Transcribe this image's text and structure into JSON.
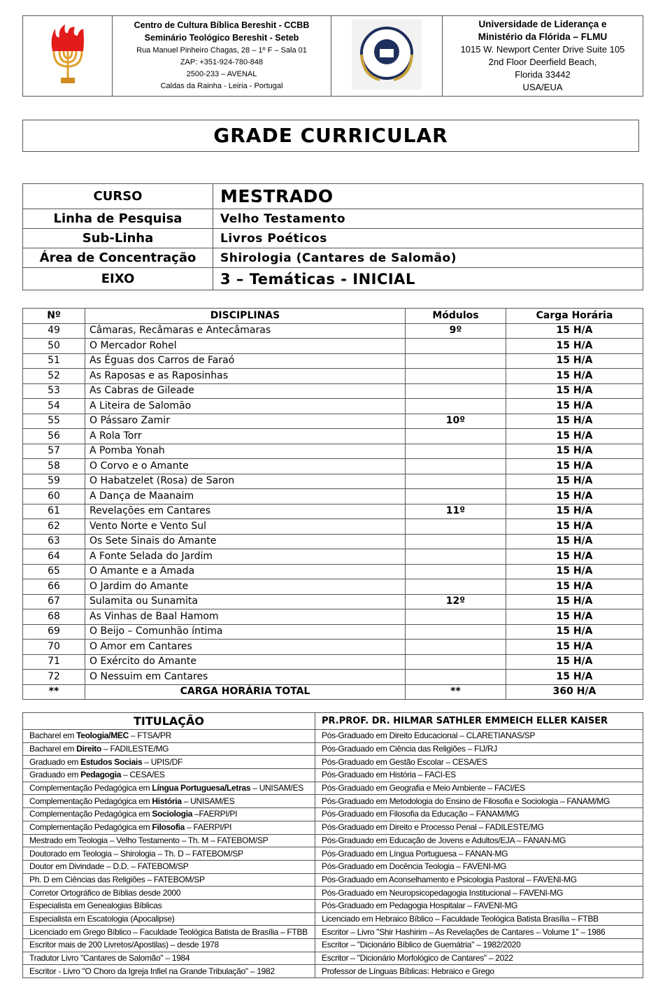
{
  "header": {
    "left_logo": "menorah-flame-logo",
    "ccbb": {
      "line1": "Centro de Cultura Bíblica Bereshit - CCBB",
      "line2": "Seminário Teológico Bereshit - Seteb",
      "line3": "Rua Manuel Pinheiro Chagas, 28 – 1º F – Sala 01",
      "line4": "ZAP: +351-924-780-848",
      "line5": "2500-233 – AVENAL",
      "line6": "Caldas da Rainha - Leiria - Portugal"
    },
    "right_logo": "university-seal-logo",
    "flmu": {
      "line1": "Universidade de Liderança e",
      "line2": "Ministério da Flórida – FLMU",
      "line3": "1015 W. Newport Center Drive Suite 105",
      "line4": "2nd Floor Deerfield Beach,",
      "line5": "Florida 33442",
      "line6": "USA/EUA"
    }
  },
  "title": "GRADE CURRICULAR",
  "course": [
    {
      "label": "CURSO",
      "value": "MESTRADO"
    },
    {
      "label": "Linha de Pesquisa",
      "value": "Velho Testamento"
    },
    {
      "label": "Sub-Linha",
      "value": "Livros Poéticos"
    },
    {
      "label": "Área de Concentração",
      "value": "Shirologia (Cantares de Salomão)"
    },
    {
      "label": "EIXO",
      "value": "3 – Temáticas - INICIAL"
    }
  ],
  "disciplines": {
    "headers": [
      "Nº",
      "DISCIPLINAS",
      "Módulos",
      "Carga Horária"
    ],
    "rows": [
      [
        "49",
        "Câmaras, Recâmaras e Antecâmaras",
        "9º",
        "15 H/A"
      ],
      [
        "50",
        "O Mercador Rohel",
        "",
        "15 H/A"
      ],
      [
        "51",
        "As Éguas dos Carros de Faraó",
        "",
        "15 H/A"
      ],
      [
        "52",
        "As Raposas e as Raposinhas",
        "",
        "15 H/A"
      ],
      [
        "53",
        "As Cabras de Gileade",
        "",
        "15 H/A"
      ],
      [
        "54",
        "A Liteira de Salomão",
        "",
        "15 H/A"
      ],
      [
        "55",
        "O Pássaro Zamir",
        "10º",
        "15 H/A"
      ],
      [
        "56",
        "A Rola Torr",
        "",
        "15 H/A"
      ],
      [
        "57",
        "A Pomba Yonah",
        "",
        "15 H/A"
      ],
      [
        "58",
        "O Corvo e o Amante",
        "",
        "15 H/A"
      ],
      [
        "59",
        "O Habatzelet (Rosa) de Saron",
        "",
        "15 H/A"
      ],
      [
        "60",
        " A Dança de Maanaim",
        "",
        "15 H/A"
      ],
      [
        "61",
        "Revelações em Cantares",
        "11º",
        "15 H/A"
      ],
      [
        "62",
        "Vento Norte e Vento Sul",
        "",
        "15 H/A"
      ],
      [
        "63",
        "Os Sete Sinais do Amante",
        "",
        "15 H/A"
      ],
      [
        "64",
        "A Fonte Selada do Jardim",
        "",
        "15 H/A"
      ],
      [
        "65",
        "O Amante e a Amada",
        "",
        "15 H/A"
      ],
      [
        "66",
        "O Jardim do Amante",
        "",
        "15 H/A"
      ],
      [
        "67",
        "Sulamita ou Sunamita",
        "12º",
        "15 H/A"
      ],
      [
        "68",
        "As Vinhas de Baal Hamom",
        "",
        "15 H/A"
      ],
      [
        "69",
        "O Beijo – Comunhão íntima",
        "",
        "15 H/A"
      ],
      [
        "70",
        "O Amor em Cantares",
        "",
        "15 H/A"
      ],
      [
        "71",
        " O Exército do Amante",
        "",
        "15 H/A"
      ],
      [
        "72",
        "O Nessuim em Cantares",
        "",
        "15 H/A"
      ]
    ],
    "total": [
      "**",
      "CARGA HORÁRIA TOTAL",
      "**",
      "360 H/A"
    ]
  },
  "titulacao": {
    "left_header": "TITULAÇÃO",
    "right_header": "PR.PROF. DR. HILMAR SATHLER EMMEICH ELLER KAISER",
    "left": [
      {
        "pre": "Bacharel em ",
        "bold": "Teologia/MEC",
        "post": " – FTSA/PR"
      },
      {
        "pre": "Bacharel em ",
        "bold": "Direito",
        "post": " – FADILESTE/MG"
      },
      {
        "pre": "Graduado em ",
        "bold": "Estudos Sociais",
        "post": " – UPIS/DF"
      },
      {
        "pre": "Graduado em ",
        "bold": "Pedagogia",
        "post": " – CESA/ES"
      },
      {
        "pre": "Complementação Pedagógica em ",
        "bold": "Língua Portuguesa/Letras",
        "post": " – UNISAM/ES"
      },
      {
        "pre": "Complementação Pedagógica em ",
        "bold": "História",
        "post": " – UNISAM/ES"
      },
      {
        "pre": "Complementação Pedagógica em ",
        "bold": "Sociologia",
        "post": " –FAERPI/PI"
      },
      {
        "pre": "Complementação Pedagógica em ",
        "bold": "Filosofia",
        "post": " – FAERPI/PI"
      },
      {
        "pre": "Mestrado em Teologia – Velho Testamento – Th. M – FATEBOM/SP",
        "bold": "",
        "post": ""
      },
      {
        "pre": "Doutorado em Teologia – Shirologia – Th. D – FATEBOM/SP",
        "bold": "",
        "post": ""
      },
      {
        "pre": "Doutor em Divindade – D.D. – FATEBOM/SP",
        "bold": "",
        "post": ""
      },
      {
        "pre": "Ph. D em Ciências das Religiões – FATEBOM/SP",
        "bold": "",
        "post": ""
      },
      {
        "pre": "Corretor Ortográfico de Bíblias desde 2000",
        "bold": "",
        "post": ""
      },
      {
        "pre": "Especialista em Genealogias Bíblicas",
        "bold": "",
        "post": ""
      },
      {
        "pre": "Especialista em Escatologia (Apocalipse)",
        "bold": "",
        "post": ""
      },
      {
        "pre": "Licenciado em Grego Bíblico – Faculdade Teológica Batista de Brasília – FTBB",
        "bold": "",
        "post": ""
      },
      {
        "pre": "Escritor mais de 200 Livretos/Apostilas) – desde 1978",
        "bold": "",
        "post": ""
      },
      {
        "pre": "Tradutor Livro \"Cantares de Salomão\" – 1984",
        "bold": "",
        "post": ""
      },
      {
        "pre": "Escritor - Livro \"O Choro da Igreja Infiel na Grande Tribulação\" – 1982",
        "bold": "",
        "post": ""
      }
    ],
    "right": [
      "Pós-Graduado em Direito Educacional – CLARETIANAS/SP",
      "Pós-Graduado em Ciência das Religiões – FIJ/RJ",
      "Pós-Graduado em Gestão Escolar – CESA/ES",
      "Pós-Graduado em História – FACI-ES",
      "Pós-Graduado em Geografia e Meio Ambiente – FACI/ES",
      "Pós-Graduado em Metodologia do Ensino de Filosofia e Sociologia – FANAM/MG",
      "Pós-Graduado em Filosofia da Educação – FANAM/MG",
      "Pós-Graduado em Direito e Processo Penal – FADILESTE/MG",
      "Pós-Graduado em Educação de Jovens e Adultos/EJA – FANAN-MG",
      "Pós-Graduado em Língua Portuguesa – FANAN-MG",
      "Pós-Graduado em Docência Teologia – FAVENI-MG",
      "Pós-Graduado em Aconselhamento e Psicologia Pastoral – FAVENI-MG",
      "Pós-Graduado em Neuropsicopedagogia Institucional – FAVENI-MG",
      "Pós-Graduado em Pedagogia Hospitalar – FAVENI-MG",
      "Licenciado em Hebraico Bíblico – Faculdade Teológica Batista Brasília – FTBB",
      "Escritor – Livro \"Shir Hashirim – As Revelações de Cantares – Volume 1\" – 1986",
      "Escritor – \"Dicionário Bíblico de Guemátria\" – 1982/2020",
      "Escritor – \"Dicionário Morfológico de Cantares\" – 2022",
      "Professor de Línguas Bíblicas: Hebraico e Grego"
    ]
  }
}
